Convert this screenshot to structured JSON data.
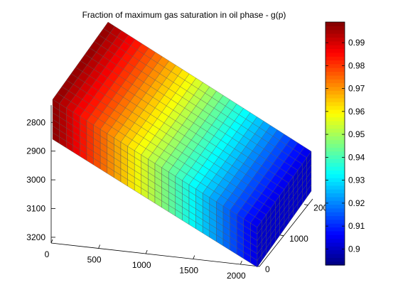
{
  "chart_data": {
    "type": "surface3d",
    "title": "Fraction of maximum gas saturation in oil phase - g(p)",
    "xlabel": "",
    "ylabel": "",
    "zlabel": "",
    "x_axis": {
      "range": [
        0,
        2200
      ],
      "ticks": [
        "0",
        "500",
        "1000",
        "1500",
        "2000"
      ]
    },
    "y_axis": {
      "range": [
        0,
        2200
      ],
      "ticks": [
        "0",
        "1000",
        "2000"
      ]
    },
    "z_axis": {
      "range": [
        3220,
        2740
      ],
      "direction": "reversed",
      "ticks": [
        "2800",
        "2900",
        "3000",
        "3100",
        "3200"
      ]
    },
    "colorbar": {
      "colormap": "jet",
      "range": [
        0.893,
        0.999
      ],
      "ticks": [
        "0.9",
        "0.91",
        "0.92",
        "0.93",
        "0.94",
        "0.95",
        "0.96",
        "0.97",
        "0.98",
        "0.99"
      ]
    },
    "field": {
      "name": "g(p)",
      "value_at_x0": 0.998,
      "value_at_xmax": 0.903,
      "grid_columns_along_x": 30,
      "grid_rows_along_y": 12,
      "layers": 6
    }
  }
}
